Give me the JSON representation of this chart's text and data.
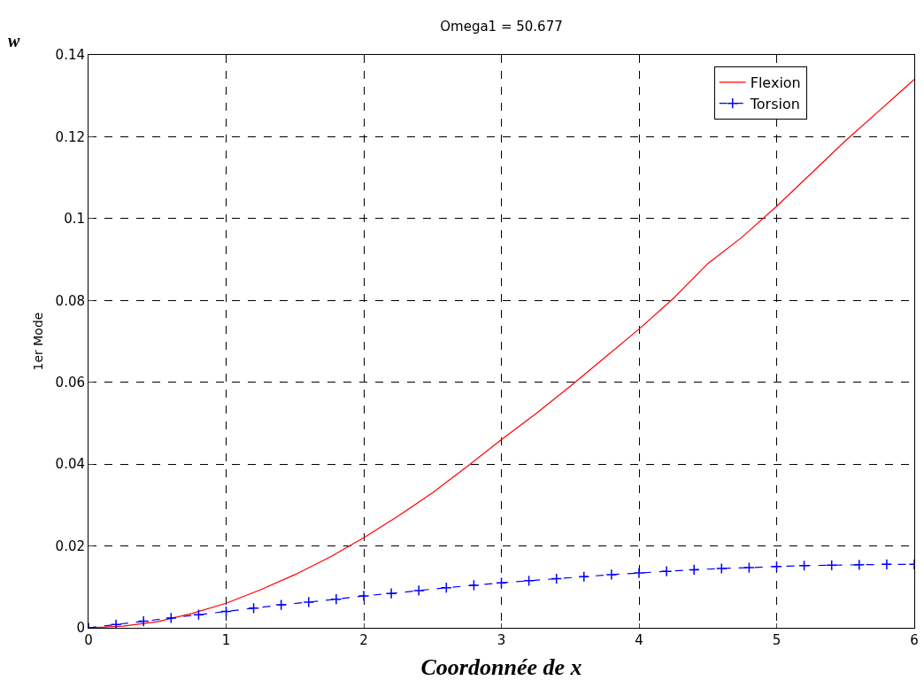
{
  "chart_data": {
    "type": "line",
    "title": "Omega1 = 50.677",
    "xlabel": "Coordonnée de x",
    "ylabel": "1er Mode",
    "annotations": [
      "w"
    ],
    "xlim": [
      0,
      6
    ],
    "xticks": [
      0,
      1,
      2,
      3,
      4,
      5,
      6
    ],
    "ylim": [
      0,
      0.14
    ],
    "yticks": [
      0,
      0.02,
      0.04,
      0.06,
      0.08,
      0.1,
      0.12,
      0.14
    ],
    "grid": true,
    "legend": "top right",
    "series": [
      {
        "name": "Flexion",
        "color": "#ff0000",
        "marker": "none",
        "line_style": "solid",
        "x": [
          0,
          0.25,
          0.5,
          0.75,
          1,
          1.25,
          1.5,
          1.75,
          2,
          2.25,
          2.5,
          2.75,
          3,
          3.25,
          3.5,
          3.75,
          4,
          4.25,
          4.5,
          4.75,
          5,
          5.25,
          5.5,
          5.75,
          6
        ],
        "values": [
          0,
          0.0004,
          0.0015,
          0.0035,
          0.006,
          0.0093,
          0.013,
          0.0172,
          0.022,
          0.0273,
          0.033,
          0.0394,
          0.046,
          0.0523,
          0.059,
          0.066,
          0.073,
          0.0805,
          0.089,
          0.0955,
          0.103,
          0.111,
          0.119,
          0.1265,
          0.134
        ]
      },
      {
        "name": "Torsion",
        "color": "#0000ff",
        "marker": "cross",
        "line_style": "dashed",
        "x": [
          0,
          0.2,
          0.4,
          0.6,
          0.8,
          1,
          1.2,
          1.4,
          1.6,
          1.8,
          2,
          2.2,
          2.4,
          2.6,
          2.8,
          3,
          3.2,
          3.4,
          3.6,
          3.8,
          4,
          4.2,
          4.4,
          4.6,
          4.8,
          5,
          5.2,
          5.4,
          5.6,
          5.8,
          6
        ],
        "values": [
          0,
          0.0008,
          0.0016,
          0.0024,
          0.0032,
          0.004,
          0.0048,
          0.0056,
          0.0063,
          0.007,
          0.0078,
          0.0084,
          0.0091,
          0.0098,
          0.0104,
          0.011,
          0.0115,
          0.012,
          0.0125,
          0.013,
          0.0134,
          0.0138,
          0.0142,
          0.0145,
          0.0147,
          0.015,
          0.0152,
          0.0153,
          0.0154,
          0.0155,
          0.0155
        ]
      }
    ]
  }
}
